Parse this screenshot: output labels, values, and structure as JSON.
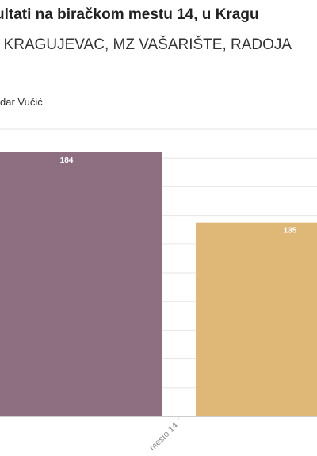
{
  "title": "ultati na biračkom mestu 14, u Kragu",
  "subtitle": ", KRAGUJEVAC, MZ VAŠARIŠTE, RADOJA",
  "legend": {
    "entry": "dar Vučić"
  },
  "colors": {
    "series_1": "#8e6f82",
    "series_2": "#dfb878",
    "grid": "#e6e6e6",
    "axis": "#cccccc"
  },
  "chart_data": {
    "type": "bar",
    "categories": [
      "mesto 14"
    ],
    "series": [
      {
        "values": [
          184
        ]
      },
      {
        "values": [
          135
        ]
      }
    ],
    "ylim": [
      0,
      200
    ],
    "grid": true
  }
}
